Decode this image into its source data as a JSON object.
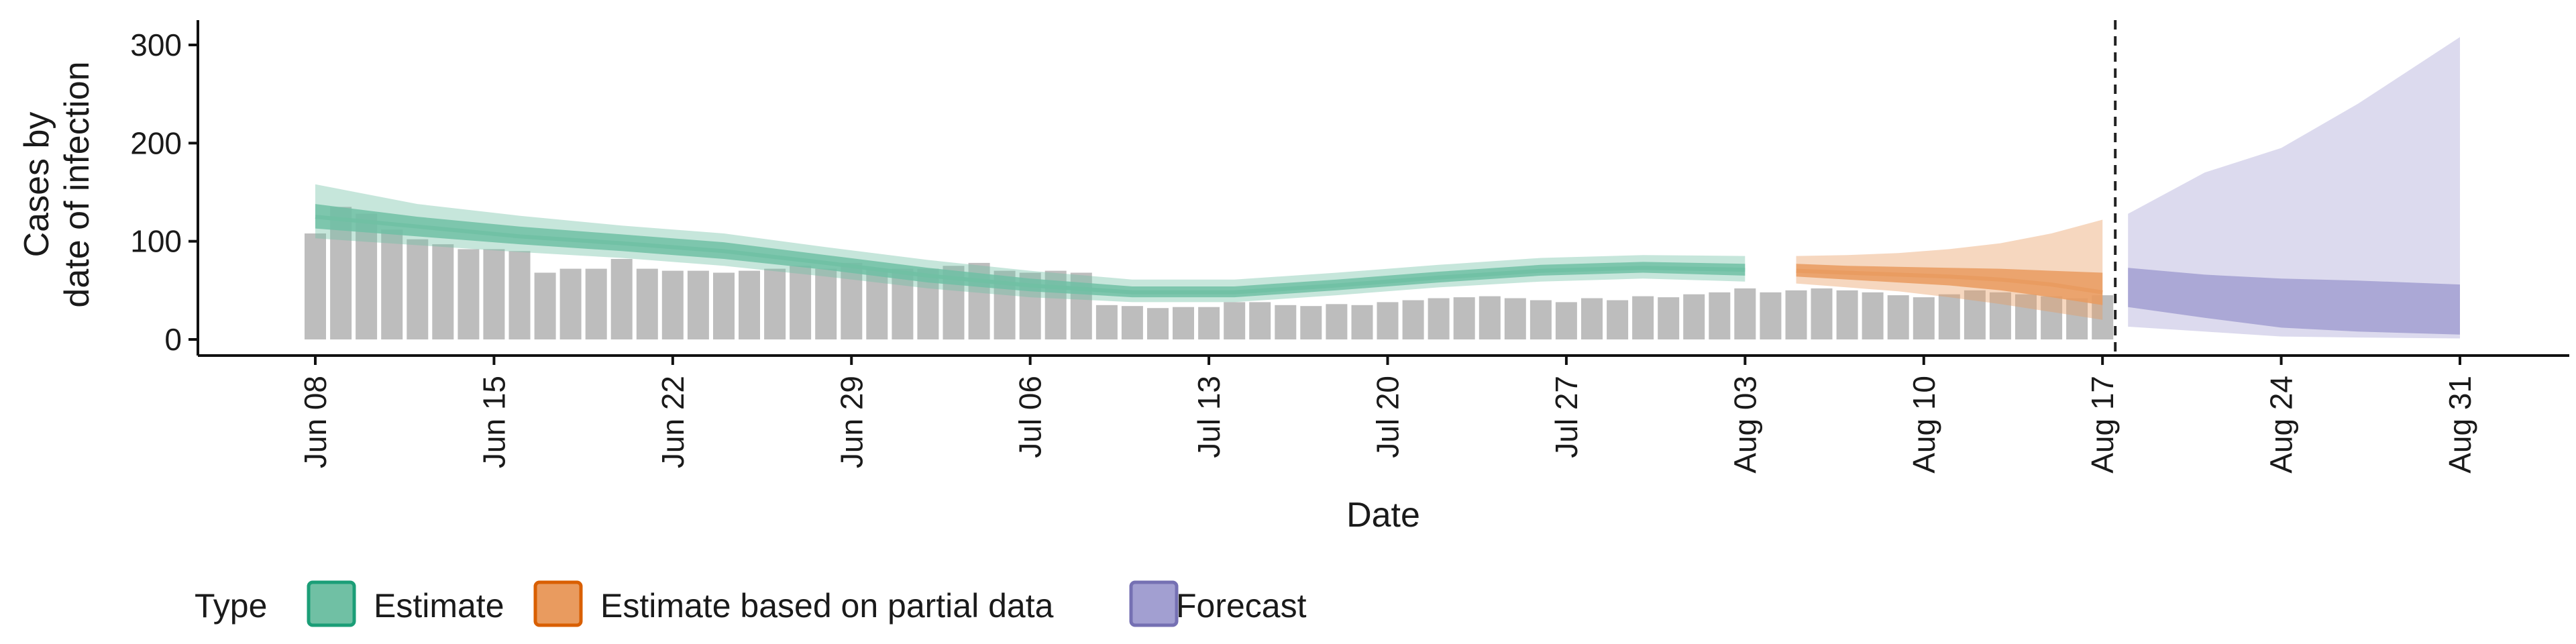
{
  "chart_data": {
    "type": "area",
    "xlabel": "Date",
    "ylabel": [
      "Cases by",
      "date of infection"
    ],
    "ylim": [
      0,
      320
    ],
    "yticks": [
      0,
      100,
      200,
      300
    ],
    "xlim": [
      -3,
      86
    ],
    "xticks": [
      {
        "day": 0,
        "label": "Jun 08"
      },
      {
        "day": 7,
        "label": "Jun 15"
      },
      {
        "day": 14,
        "label": "Jun 22"
      },
      {
        "day": 21,
        "label": "Jun 29"
      },
      {
        "day": 28,
        "label": "Jul 06"
      },
      {
        "day": 35,
        "label": "Jul 13"
      },
      {
        "day": 42,
        "label": "Jul 20"
      },
      {
        "day": 49,
        "label": "Jul 27"
      },
      {
        "day": 56,
        "label": "Aug 03"
      },
      {
        "day": 63,
        "label": "Aug 10"
      },
      {
        "day": 70,
        "label": "Aug 17"
      },
      {
        "day": 77,
        "label": "Aug 24"
      },
      {
        "day": 84,
        "label": "Aug 31"
      }
    ],
    "reported_cases": {
      "start_day": 0,
      "values": [
        108,
        135,
        128,
        112,
        102,
        97,
        92,
        92,
        90,
        68,
        72,
        72,
        82,
        72,
        70,
        70,
        68,
        70,
        72,
        75,
        72,
        78,
        72,
        72,
        72,
        75,
        78,
        70,
        68,
        70,
        68,
        35,
        34,
        32,
        33,
        33,
        38,
        38,
        35,
        34,
        36,
        35,
        38,
        40,
        42,
        43,
        44,
        42,
        40,
        38,
        42,
        40,
        44,
        43,
        46,
        48,
        52,
        48,
        50,
        52,
        50,
        48,
        45,
        43,
        46,
        50,
        48,
        46,
        44,
        42,
        45
      ]
    },
    "series": [
      {
        "name": "Estimate",
        "color": "#1b9e77",
        "fill": "#70c0a4",
        "x": [
          0,
          4,
          8,
          12,
          16,
          20,
          24,
          28,
          32,
          36,
          40,
          44,
          48,
          52,
          56
        ],
        "median": [
          125,
          115,
          105,
          98,
          90,
          78,
          65,
          55,
          48,
          48,
          55,
          63,
          70,
          73,
          71
        ],
        "lower50": [
          113,
          105,
          97,
          90,
          82,
          71,
          58,
          49,
          43,
          43,
          50,
          58,
          65,
          68,
          65
        ],
        "upper50": [
          138,
          125,
          115,
          107,
          99,
          86,
          73,
          62,
          54,
          54,
          61,
          69,
          76,
          79,
          77
        ],
        "lower90": [
          103,
          96,
          89,
          83,
          75,
          64,
          52,
          43,
          38,
          38,
          45,
          53,
          59,
          62,
          59
        ],
        "upper90": [
          158,
          138,
          126,
          116,
          108,
          94,
          81,
          70,
          61,
          61,
          68,
          76,
          83,
          86,
          85
        ]
      },
      {
        "name": "Estimate based on partial data",
        "color": "#d95f02",
        "fill": "#e99b5f",
        "x": [
          58,
          60,
          62,
          64,
          66,
          68,
          70
        ],
        "median": [
          70,
          68,
          66,
          64,
          61,
          56,
          48
        ],
        "lower50": [
          64,
          61,
          58,
          55,
          50,
          43,
          35
        ],
        "upper50": [
          77,
          75,
          74,
          73,
          72,
          70,
          68
        ],
        "lower90": [
          57,
          53,
          49,
          43,
          36,
          28,
          20
        ],
        "upper90": [
          85,
          86,
          88,
          92,
          98,
          108,
          122
        ]
      },
      {
        "name": "Forecast",
        "color": "#7570b3",
        "fill": "#a29fd1",
        "x": [
          71,
          74,
          77,
          80,
          84
        ],
        "lower50": [
          33,
          22,
          12,
          8,
          5
        ],
        "upper50": [
          73,
          66,
          62,
          60,
          56
        ],
        "lower90": [
          13,
          8,
          3,
          2,
          1
        ],
        "upper90": [
          128,
          170,
          195,
          240,
          308
        ]
      }
    ],
    "vline_day": 70.5,
    "legend": {
      "title": "Type",
      "position": "bottom",
      "items": [
        {
          "label": "Estimate",
          "fill": "#70c0a4",
          "stroke": "#1b9e77"
        },
        {
          "label": "Estimate based on partial data",
          "fill": "#e99b5f",
          "stroke": "#d95f02"
        },
        {
          "label": "Forecast",
          "fill": "#a29fd1",
          "stroke": "#7570b3"
        }
      ]
    }
  }
}
